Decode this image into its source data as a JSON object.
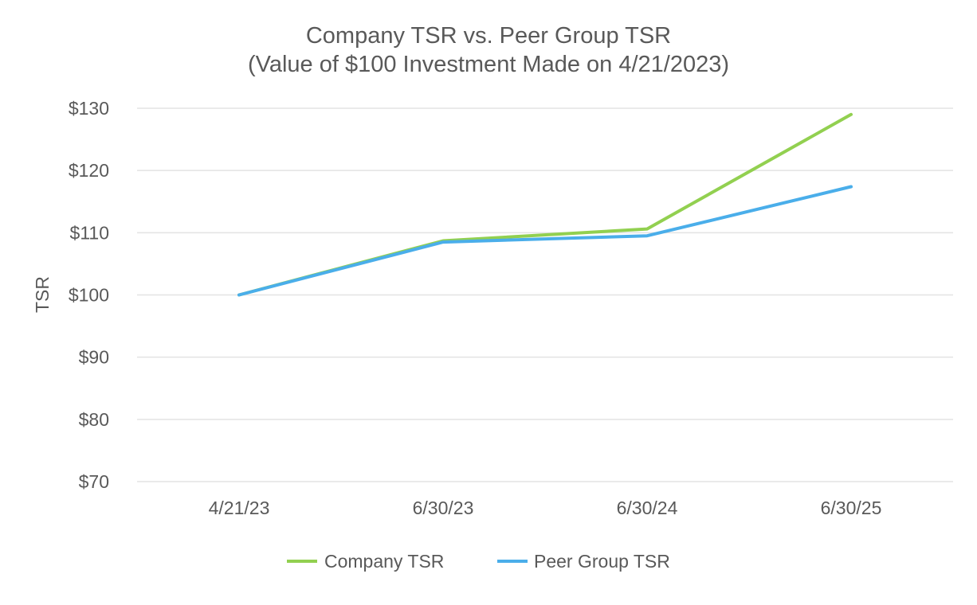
{
  "chart_data": {
    "type": "line",
    "title": "Company TSR vs. Peer Group TSR",
    "subtitle": "(Value of $100 Investment Made on 4/21/2023)",
    "xlabel": "",
    "ylabel": "TSR",
    "categories": [
      "4/21/23",
      "6/30/23",
      "6/30/24",
      "6/30/25"
    ],
    "ylim": [
      70,
      130
    ],
    "yticks": [
      70,
      80,
      90,
      100,
      110,
      120,
      130
    ],
    "ytick_labels": [
      "$70",
      "$80",
      "$90",
      "$100",
      "$110",
      "$120",
      "$130"
    ],
    "grid": true,
    "legend_position": "bottom-center",
    "series": [
      {
        "name": "Company TSR",
        "color": "#92d050",
        "values": [
          100.0,
          108.7,
          110.6,
          129.0
        ]
      },
      {
        "name": "Peer Group TSR",
        "color": "#4aaeea",
        "values": [
          100.0,
          108.5,
          109.5,
          117.4
        ]
      }
    ]
  }
}
